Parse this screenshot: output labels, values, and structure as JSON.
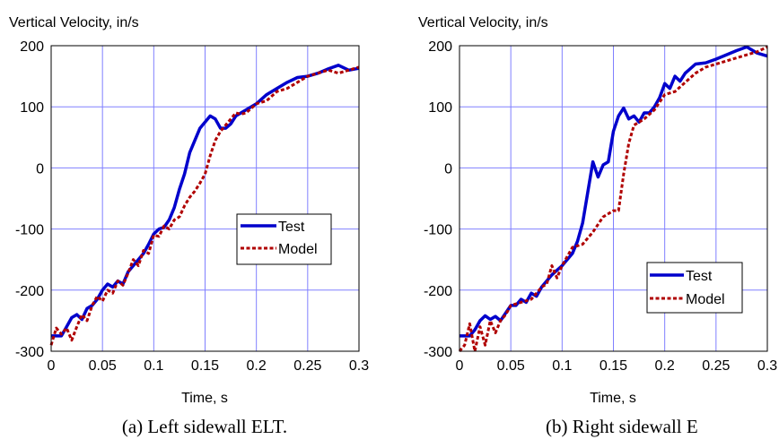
{
  "colors": {
    "test": "#0000cc",
    "model": "#b00000",
    "grid": "#8080ff",
    "frame": "#000000"
  },
  "chart_data": [
    {
      "type": "line",
      "ylabel": "Vertical Velocity, in/s",
      "xlabel": "Time, s",
      "caption": "(a) Left sidewall ELT.",
      "xlim": [
        0,
        0.3
      ],
      "ylim": [
        -300,
        200
      ],
      "xticks": [
        "0",
        "0.05",
        "0.1",
        "0.15",
        "0.2",
        "0.25",
        "0.3"
      ],
      "yticks": [
        "200",
        "100",
        "0",
        "-100",
        "-200",
        "-300"
      ],
      "grid": true,
      "legend_position": "center-right",
      "series": [
        {
          "name": "Test",
          "color": "#0000cc",
          "style": "solid",
          "x": [
            0,
            0.01,
            0.015,
            0.02,
            0.025,
            0.03,
            0.035,
            0.04,
            0.045,
            0.05,
            0.055,
            0.06,
            0.065,
            0.07,
            0.075,
            0.08,
            0.085,
            0.09,
            0.095,
            0.1,
            0.105,
            0.11,
            0.115,
            0.12,
            0.125,
            0.13,
            0.135,
            0.14,
            0.145,
            0.15,
            0.155,
            0.16,
            0.165,
            0.17,
            0.175,
            0.18,
            0.19,
            0.2,
            0.21,
            0.22,
            0.23,
            0.24,
            0.25,
            0.26,
            0.27,
            0.28,
            0.29,
            0.3
          ],
          "y": [
            -275,
            -275,
            -260,
            -245,
            -240,
            -248,
            -230,
            -225,
            -215,
            -200,
            -190,
            -195,
            -185,
            -190,
            -170,
            -160,
            -150,
            -140,
            -125,
            -108,
            -100,
            -97,
            -85,
            -65,
            -35,
            -10,
            25,
            45,
            65,
            75,
            85,
            80,
            65,
            65,
            72,
            85,
            95,
            105,
            120,
            130,
            140,
            148,
            150,
            155,
            162,
            168,
            160,
            163
          ]
        },
        {
          "name": "Model",
          "color": "#b00000",
          "style": "dashed",
          "x": [
            0,
            0.005,
            0.01,
            0.015,
            0.02,
            0.025,
            0.03,
            0.035,
            0.04,
            0.045,
            0.05,
            0.055,
            0.06,
            0.065,
            0.07,
            0.075,
            0.08,
            0.085,
            0.09,
            0.095,
            0.1,
            0.105,
            0.11,
            0.115,
            0.12,
            0.125,
            0.13,
            0.135,
            0.14,
            0.145,
            0.15,
            0.155,
            0.16,
            0.165,
            0.17,
            0.175,
            0.18,
            0.185,
            0.19,
            0.2,
            0.21,
            0.22,
            0.23,
            0.24,
            0.25,
            0.26,
            0.27,
            0.28,
            0.29,
            0.3
          ],
          "y": [
            -290,
            -262,
            -272,
            -262,
            -282,
            -260,
            -240,
            -250,
            -225,
            -210,
            -218,
            -200,
            -205,
            -185,
            -192,
            -172,
            -150,
            -160,
            -135,
            -140,
            -110,
            -112,
            -95,
            -100,
            -85,
            -80,
            -62,
            -48,
            -38,
            -25,
            -10,
            20,
            45,
            60,
            70,
            80,
            90,
            88,
            90,
            105,
            110,
            125,
            130,
            140,
            150,
            155,
            160,
            155,
            160,
            165
          ]
        }
      ]
    },
    {
      "type": "line",
      "ylabel": "Vertical Velocity, in/s",
      "xlabel": "Time, s",
      "caption": "(b) Right sidewall E",
      "xlim": [
        0,
        0.3
      ],
      "ylim": [
        -300,
        200
      ],
      "xticks": [
        "0",
        "0.05",
        "0.1",
        "0.15",
        "0.2",
        "0.25",
        "0.3"
      ],
      "yticks": [
        "200",
        "100",
        "0",
        "-100",
        "-200",
        "-300"
      ],
      "grid": true,
      "legend_position": "bottom-right",
      "series": [
        {
          "name": "Test",
          "color": "#0000cc",
          "style": "solid",
          "x": [
            0,
            0.01,
            0.015,
            0.02,
            0.025,
            0.03,
            0.035,
            0.04,
            0.05,
            0.055,
            0.06,
            0.065,
            0.07,
            0.075,
            0.08,
            0.09,
            0.1,
            0.105,
            0.11,
            0.115,
            0.12,
            0.125,
            0.13,
            0.135,
            0.14,
            0.145,
            0.15,
            0.155,
            0.16,
            0.165,
            0.17,
            0.175,
            0.18,
            0.185,
            0.19,
            0.195,
            0.2,
            0.205,
            0.21,
            0.215,
            0.22,
            0.23,
            0.24,
            0.25,
            0.26,
            0.27,
            0.28,
            0.29,
            0.3
          ],
          "y": [
            -275,
            -275,
            -265,
            -250,
            -242,
            -248,
            -243,
            -250,
            -225,
            -225,
            -215,
            -220,
            -205,
            -210,
            -195,
            -175,
            -160,
            -150,
            -140,
            -120,
            -90,
            -40,
            10,
            -15,
            5,
            10,
            60,
            85,
            98,
            80,
            85,
            75,
            90,
            90,
            100,
            115,
            138,
            130,
            150,
            142,
            155,
            170,
            172,
            178,
            185,
            192,
            198,
            188,
            183
          ]
        },
        {
          "name": "Model",
          "color": "#b00000",
          "style": "dashed",
          "x": [
            0,
            0.005,
            0.01,
            0.015,
            0.02,
            0.025,
            0.03,
            0.035,
            0.04,
            0.045,
            0.05,
            0.06,
            0.07,
            0.08,
            0.085,
            0.09,
            0.095,
            0.1,
            0.11,
            0.12,
            0.13,
            0.14,
            0.15,
            0.155,
            0.16,
            0.165,
            0.17,
            0.175,
            0.18,
            0.19,
            0.2,
            0.21,
            0.22,
            0.23,
            0.24,
            0.25,
            0.26,
            0.27,
            0.28,
            0.29,
            0.3
          ],
          "y": [
            -300,
            -290,
            -255,
            -300,
            -260,
            -290,
            -250,
            -270,
            -250,
            -240,
            -225,
            -220,
            -215,
            -195,
            -190,
            -160,
            -180,
            -160,
            -130,
            -125,
            -105,
            -80,
            -70,
            -70,
            -10,
            40,
            70,
            75,
            80,
            95,
            120,
            125,
            140,
            155,
            165,
            170,
            175,
            180,
            185,
            190,
            198
          ]
        }
      ]
    }
  ]
}
